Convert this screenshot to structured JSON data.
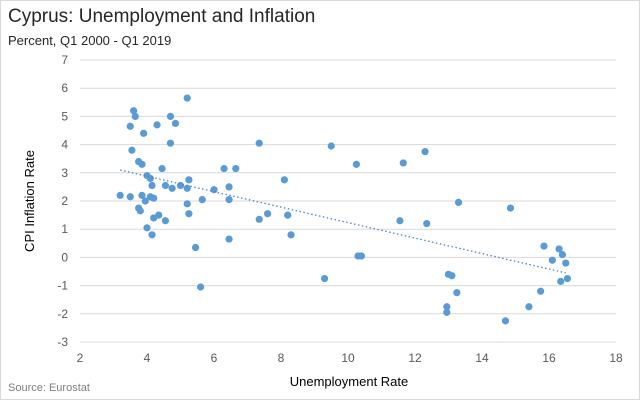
{
  "chart_data": {
    "type": "scatter",
    "title": "Cyprus: Unemployment and Inflation",
    "subtitle": "Percent, Q1 2000 - Q1 2019",
    "xlabel": "Unemployment  Rate",
    "ylabel": "CPI Inflation Rate",
    "source": "Source: Eurostat",
    "xlim": [
      2,
      18
    ],
    "ylim": [
      -3,
      7
    ],
    "xticks": [
      "2",
      "4",
      "6",
      "8",
      "10",
      "12",
      "14",
      "16",
      "18"
    ],
    "yticks": [
      "-3",
      "-2",
      "-1",
      "0",
      "1",
      "2",
      "3",
      "4",
      "5",
      "6",
      "7"
    ],
    "grid": "horizontal",
    "trendline": {
      "x": [
        3.2,
        16.5
      ],
      "y": [
        3.1,
        -0.55
      ],
      "style": "dotted"
    },
    "colors": {
      "point": "#5b9bd5",
      "trend": "#4a86c5",
      "grid": "#d9d9d9"
    },
    "points": [
      [
        3.2,
        2.2
      ],
      [
        3.5,
        2.15
      ],
      [
        3.55,
        3.8
      ],
      [
        3.5,
        4.65
      ],
      [
        3.6,
        5.2
      ],
      [
        3.65,
        5.0
      ],
      [
        3.75,
        3.4
      ],
      [
        3.75,
        1.75
      ],
      [
        3.8,
        1.65
      ],
      [
        3.85,
        3.3
      ],
      [
        3.85,
        2.2
      ],
      [
        3.9,
        4.4
      ],
      [
        3.95,
        2.0
      ],
      [
        4.0,
        2.9
      ],
      [
        4.0,
        1.05
      ],
      [
        4.1,
        2.15
      ],
      [
        4.1,
        2.8
      ],
      [
        4.15,
        2.55
      ],
      [
        4.15,
        0.8
      ],
      [
        4.2,
        1.4
      ],
      [
        4.2,
        2.1
      ],
      [
        4.3,
        4.7
      ],
      [
        4.35,
        1.5
      ],
      [
        4.45,
        3.15
      ],
      [
        4.55,
        2.55
      ],
      [
        4.55,
        1.3
      ],
      [
        4.7,
        4.05
      ],
      [
        4.7,
        5.0
      ],
      [
        4.75,
        2.45
      ],
      [
        4.85,
        4.75
      ],
      [
        5.0,
        2.55
      ],
      [
        5.2,
        5.65
      ],
      [
        5.2,
        2.45
      ],
      [
        5.2,
        1.9
      ],
      [
        5.25,
        2.75
      ],
      [
        5.25,
        1.55
      ],
      [
        5.45,
        0.35
      ],
      [
        5.6,
        -1.05
      ],
      [
        5.65,
        2.05
      ],
      [
        6.0,
        2.4
      ],
      [
        6.3,
        3.15
      ],
      [
        6.45,
        2.5
      ],
      [
        6.45,
        2.05
      ],
      [
        6.45,
        0.65
      ],
      [
        6.65,
        3.15
      ],
      [
        7.35,
        4.05
      ],
      [
        7.35,
        1.35
      ],
      [
        7.6,
        1.55
      ],
      [
        8.1,
        2.75
      ],
      [
        8.2,
        1.5
      ],
      [
        8.3,
        0.8
      ],
      [
        9.3,
        -0.75
      ],
      [
        9.5,
        3.95
      ],
      [
        10.25,
        3.3
      ],
      [
        10.3,
        0.05
      ],
      [
        10.4,
        0.05
      ],
      [
        11.55,
        1.3
      ],
      [
        11.65,
        3.35
      ],
      [
        12.3,
        3.75
      ],
      [
        12.35,
        1.2
      ],
      [
        12.95,
        -1.75
      ],
      [
        12.95,
        -1.95
      ],
      [
        13.0,
        -0.6
      ],
      [
        13.1,
        -0.65
      ],
      [
        13.25,
        -1.25
      ],
      [
        13.3,
        1.95
      ],
      [
        14.7,
        -2.25
      ],
      [
        14.85,
        1.75
      ],
      [
        15.4,
        -1.75
      ],
      [
        15.75,
        -1.2
      ],
      [
        15.85,
        0.4
      ],
      [
        16.1,
        -0.1
      ],
      [
        16.3,
        0.3
      ],
      [
        16.35,
        -0.85
      ],
      [
        16.4,
        0.1
      ],
      [
        16.5,
        -0.2
      ],
      [
        16.55,
        -0.75
      ]
    ]
  }
}
